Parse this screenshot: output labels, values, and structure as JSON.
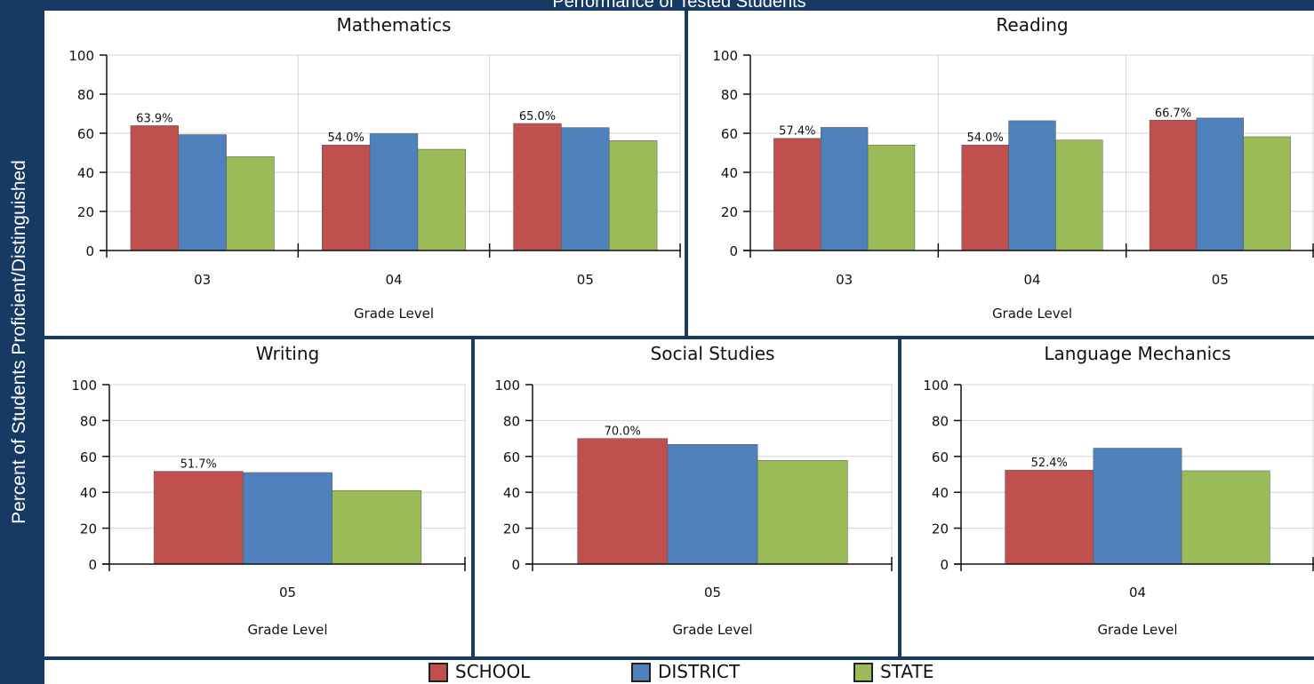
{
  "page": {
    "title": "Performance of Tested Students",
    "y_title": "Percent of Students Proficient/Distinguished"
  },
  "legend": {
    "items": [
      {
        "label": "SCHOOL",
        "color": "#c0504d"
      },
      {
        "label": "DISTRICT",
        "color": "#4f81bd"
      },
      {
        "label": "STATE",
        "color": "#9bbb59"
      }
    ]
  },
  "chart_data": [
    {
      "type": "bar",
      "title": "Mathematics",
      "categories": [
        "03",
        "04",
        "05"
      ],
      "xlabel": "Grade Level",
      "ylabel": "",
      "ylim": [
        0,
        100
      ],
      "yticks": [
        "0",
        "20",
        "40",
        "60",
        "80",
        "100"
      ],
      "grid": true,
      "series": [
        {
          "name": "SCHOOL",
          "values": [
            63.9,
            54.0,
            65.0
          ],
          "labels": [
            "63.9%",
            "54.0%",
            "65.0%"
          ]
        },
        {
          "name": "DISTRICT",
          "values": [
            59.3,
            59.8,
            62.9
          ]
        },
        {
          "name": "STATE",
          "values": [
            48.0,
            51.8,
            56.2
          ]
        }
      ]
    },
    {
      "type": "bar",
      "title": "Reading",
      "categories": [
        "03",
        "04",
        "05"
      ],
      "xlabel": "Grade Level",
      "ylabel": "",
      "ylim": [
        0,
        100
      ],
      "yticks": [
        "0",
        "20",
        "40",
        "60",
        "80",
        "100"
      ],
      "grid": true,
      "series": [
        {
          "name": "SCHOOL",
          "values": [
            57.4,
            54.0,
            66.7
          ],
          "labels": [
            "57.4%",
            "54.0%",
            "66.7%"
          ]
        },
        {
          "name": "DISTRICT",
          "values": [
            63.0,
            66.4,
            67.8
          ]
        },
        {
          "name": "STATE",
          "values": [
            54.0,
            56.5,
            58.2
          ]
        }
      ]
    },
    {
      "type": "bar",
      "title": "Writing",
      "categories": [
        "05"
      ],
      "xlabel": "Grade Level",
      "ylabel": "",
      "ylim": [
        0,
        100
      ],
      "yticks": [
        "0",
        "20",
        "40",
        "60",
        "80",
        "100"
      ],
      "grid": true,
      "series": [
        {
          "name": "SCHOOL",
          "values": [
            51.7
          ],
          "labels": [
            "51.7%"
          ]
        },
        {
          "name": "DISTRICT",
          "values": [
            51.0
          ]
        },
        {
          "name": "STATE",
          "values": [
            41.0
          ]
        }
      ]
    },
    {
      "type": "bar",
      "title": "Social Studies",
      "categories": [
        "05"
      ],
      "xlabel": "Grade Level",
      "ylabel": "",
      "ylim": [
        0,
        100
      ],
      "yticks": [
        "0",
        "20",
        "40",
        "60",
        "80",
        "100"
      ],
      "grid": true,
      "series": [
        {
          "name": "SCHOOL",
          "values": [
            70.0
          ],
          "labels": [
            "70.0%"
          ]
        },
        {
          "name": "DISTRICT",
          "values": [
            66.7
          ]
        },
        {
          "name": "STATE",
          "values": [
            57.8
          ]
        }
      ]
    },
    {
      "type": "bar",
      "title": "Language Mechanics",
      "categories": [
        "04"
      ],
      "xlabel": "Grade Level",
      "ylabel": "",
      "ylim": [
        0,
        100
      ],
      "yticks": [
        "0",
        "20",
        "40",
        "60",
        "80",
        "100"
      ],
      "grid": true,
      "series": [
        {
          "name": "SCHOOL",
          "values": [
            52.4
          ],
          "labels": [
            "52.4%"
          ]
        },
        {
          "name": "DISTRICT",
          "values": [
            64.6
          ]
        },
        {
          "name": "STATE",
          "values": [
            52.0
          ]
        }
      ]
    }
  ]
}
